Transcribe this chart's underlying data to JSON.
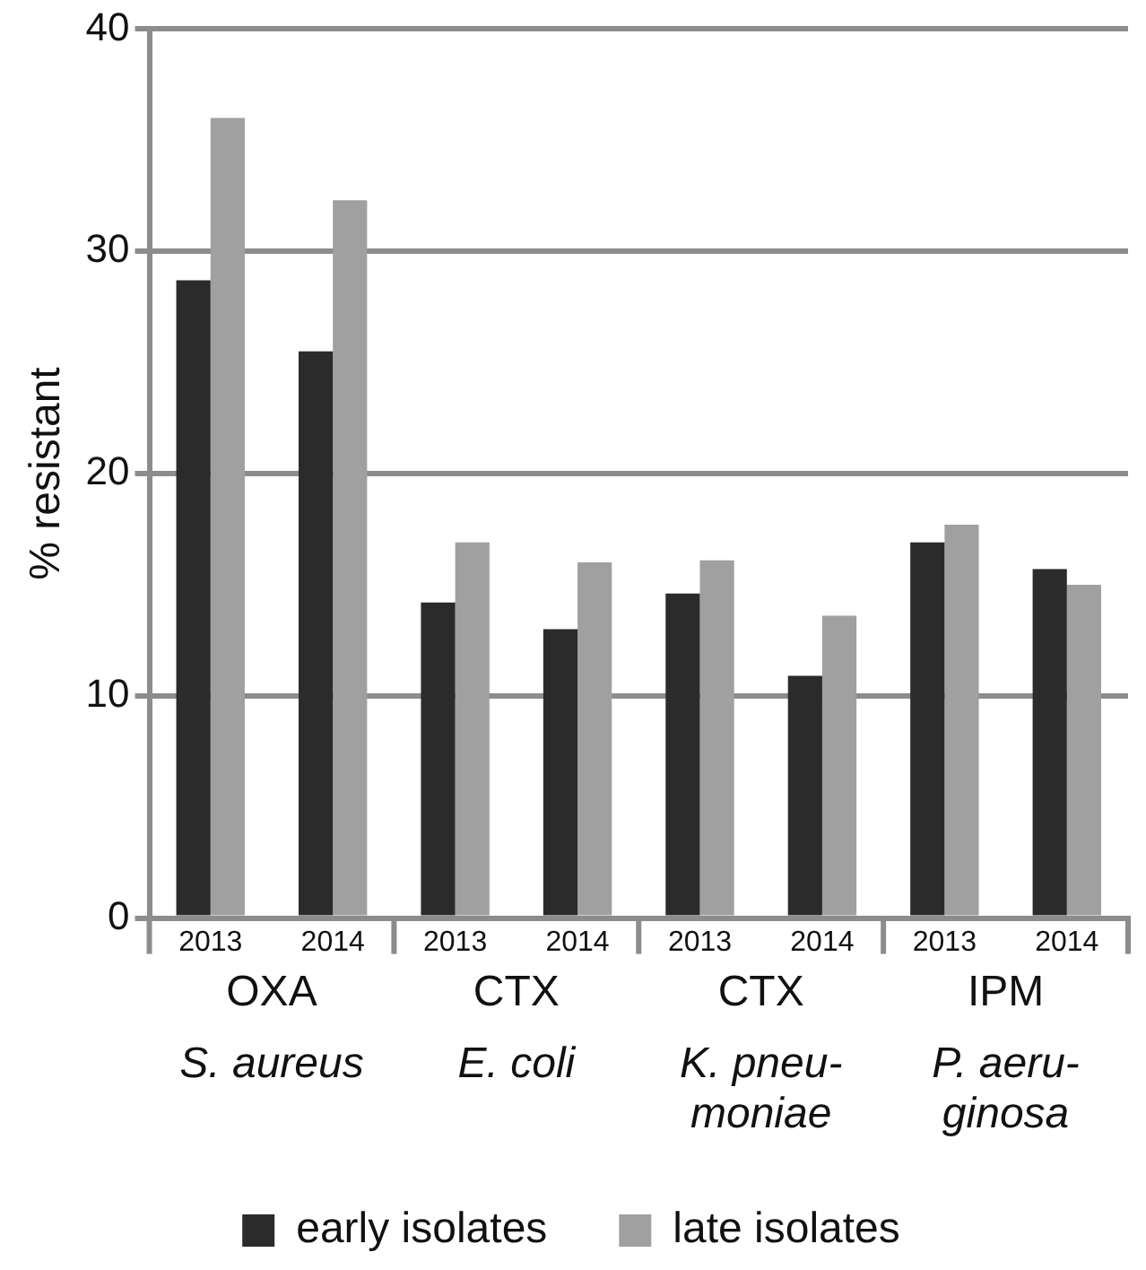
{
  "chart_data": {
    "type": "bar",
    "ylabel": "% resistant",
    "categories": [
      "2013",
      "2014",
      "2013",
      "2014",
      "2013",
      "2014",
      "2013",
      "2014"
    ],
    "series": [
      {
        "name": "early isolates",
        "color": "#2b2b2b",
        "values": [
          28.7,
          25.5,
          14.2,
          13.0,
          14.6,
          10.9,
          16.9,
          15.7
        ]
      },
      {
        "name": "late isolates",
        "color": "#a0a0a0",
        "values": [
          36.0,
          32.3,
          16.9,
          16.0,
          16.1,
          13.6,
          17.7,
          15.0
        ]
      }
    ],
    "annotations": [
      "OXA",
      "CTX",
      "CTX",
      "IPM",
      "S. aureus",
      "E. coli",
      "K. pneu-\nmoniae",
      "P. aeru-\nginosa"
    ],
    "ylim": [
      0,
      40
    ],
    "yticks": [
      0,
      10,
      20,
      30,
      40
    ],
    "grid": "y",
    "legend": "bottom"
  }
}
